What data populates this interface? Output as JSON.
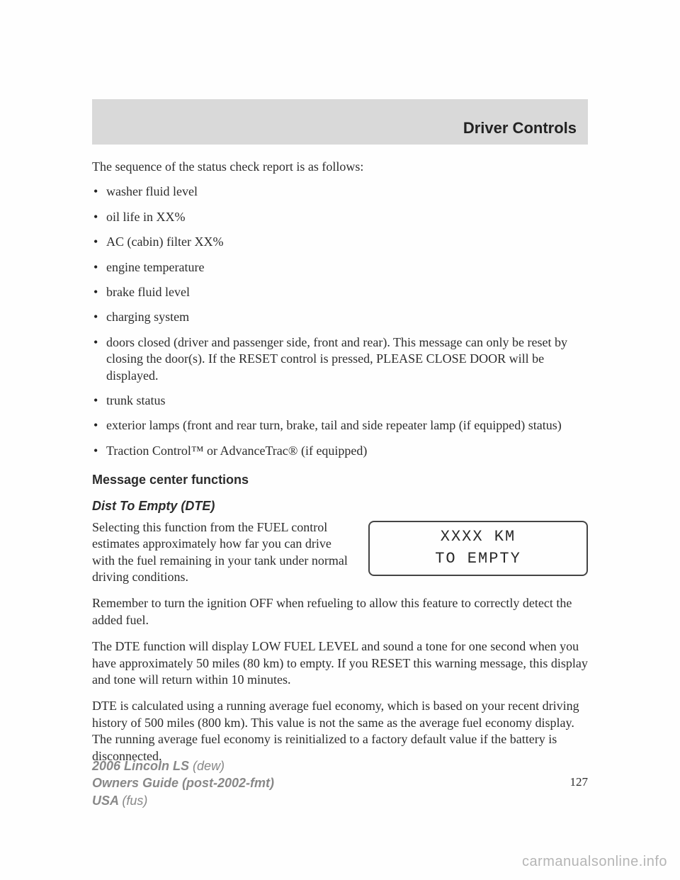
{
  "header": {
    "title": "Driver Controls"
  },
  "intro": "The sequence of the status check report is as follows:",
  "status_items": [
    "washer fluid level",
    "oil life in XX%",
    "AC (cabin) filter XX%",
    "engine temperature",
    "brake fluid level",
    "charging system",
    "doors closed (driver and passenger side, front and rear). This message can only be reset by closing the door(s). If the RESET control is pressed, PLEASE CLOSE DOOR will be displayed.",
    "trunk status",
    "exterior lamps (front and rear turn, brake, tail and side repeater lamp (if equipped) status)",
    "Traction Control™ or AdvanceTrac® (if equipped)"
  ],
  "sections": {
    "mc_functions": "Message center functions",
    "dte_title": "Dist To Empty (DTE)"
  },
  "dte": {
    "intro_text": "Selecting this function from the FUEL control estimates approximately how far you can drive with the fuel remaining in your tank under normal driving conditions.",
    "display_line1": "XXXX   KM",
    "display_line2": "TO EMPTY"
  },
  "paras": {
    "p1": "Remember to turn the ignition OFF when refueling to allow this feature to correctly detect the added fuel.",
    "p2": "The DTE function will display LOW FUEL LEVEL and sound a tone for one second when you have approximately 50 miles (80 km) to empty. If you RESET this warning message, this display and tone will return within 10 minutes.",
    "p3": "DTE is calculated using a running average fuel economy, which is based on your recent driving history of 500 miles (800 km). This value is not the same as the average fuel economy display. The running average fuel economy is reinitialized to a factory default value if the battery is disconnected."
  },
  "page_number": "127",
  "footer": {
    "l1a": "2006 Lincoln LS ",
    "l1b": "(dew)",
    "l2a": "Owners Guide (post-2002-fmt)",
    "l3a": "USA ",
    "l3b": "(fus)"
  },
  "watermark": "carmanualsonline.info"
}
